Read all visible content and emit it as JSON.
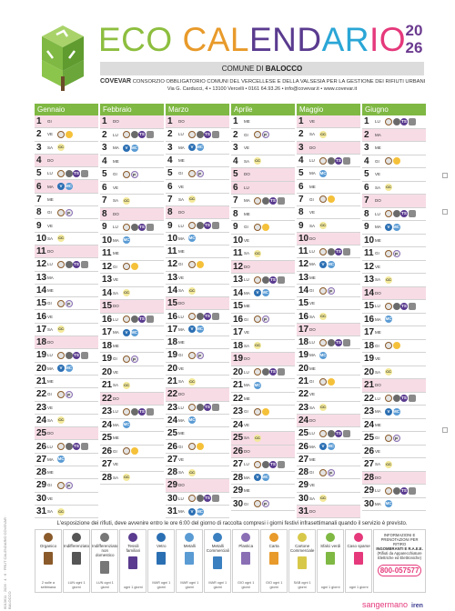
{
  "header": {
    "title_parts": [
      "ECO ",
      "CAL",
      "END",
      "AR",
      "IO"
    ],
    "year_top": "20",
    "year_bottom": "26",
    "comune_prefix": "COMUNE DI ",
    "comune_name": "BALOCCO",
    "org_name": "COVEVAR",
    "org_desc": " CONSORZIO OBBLIGATORIO COMUNI DEL VERCELLESE E DELLA VALSESIA PER LA GESTIONE DEI RIFIUTI URBANI",
    "address": "Via G. Carducci, 4 • 13100 Vercelli • 0161 64.93.26 • info@covevar.it • www.covevar.it"
  },
  "months": [
    {
      "name": "Gennaio",
      "days": [
        [
          "1",
          "GI",
          "",
          true
        ],
        [
          "2",
          "VE",
          "OC",
          false
        ],
        [
          "3",
          "SA",
          "CC",
          false
        ],
        [
          "4",
          "DO",
          "",
          true
        ],
        [
          "5",
          "LU",
          "OITS",
          false
        ],
        [
          "6",
          "MA",
          "VM",
          true
        ],
        [
          "7",
          "ME",
          "",
          false
        ],
        [
          "8",
          "GI",
          "OP",
          false
        ],
        [
          "9",
          "VE",
          "",
          false
        ],
        [
          "10",
          "SA",
          "CC",
          false
        ],
        [
          "11",
          "DO",
          "",
          true
        ],
        [
          "12",
          "LU",
          "OITS",
          false
        ],
        [
          "13",
          "MA",
          "",
          false
        ],
        [
          "14",
          "ME",
          "",
          false
        ],
        [
          "15",
          "GI",
          "OP",
          false
        ],
        [
          "16",
          "VE",
          "",
          false
        ],
        [
          "17",
          "SA",
          "CC",
          false
        ],
        [
          "18",
          "DO",
          "",
          true
        ],
        [
          "19",
          "LU",
          "OITS",
          false
        ],
        [
          "20",
          "MA",
          "VM",
          false
        ],
        [
          "21",
          "ME",
          "",
          false
        ],
        [
          "22",
          "GI",
          "OP",
          false
        ],
        [
          "23",
          "VE",
          "",
          false
        ],
        [
          "24",
          "SA",
          "CC",
          false
        ],
        [
          "25",
          "DO",
          "",
          true
        ],
        [
          "26",
          "LU",
          "OITS",
          false
        ],
        [
          "27",
          "MA",
          "M",
          false
        ],
        [
          "28",
          "ME",
          "",
          false
        ],
        [
          "29",
          "GI",
          "OP",
          false
        ],
        [
          "30",
          "VE",
          "",
          false
        ],
        [
          "31",
          "SA",
          "CC",
          false
        ]
      ]
    },
    {
      "name": "Febbraio",
      "days": [
        [
          "1",
          "DO",
          "",
          true
        ],
        [
          "2",
          "LU",
          "OITS",
          false
        ],
        [
          "3",
          "MA",
          "VM",
          false
        ],
        [
          "4",
          "ME",
          "",
          false
        ],
        [
          "5",
          "GI",
          "OP",
          false
        ],
        [
          "6",
          "VE",
          "",
          false
        ],
        [
          "7",
          "SA",
          "CC",
          false
        ],
        [
          "8",
          "DO",
          "",
          true
        ],
        [
          "9",
          "LU",
          "OITS",
          false
        ],
        [
          "10",
          "MA",
          "M",
          false
        ],
        [
          "11",
          "ME",
          "",
          false
        ],
        [
          "12",
          "GI",
          "OC",
          false
        ],
        [
          "13",
          "VE",
          "",
          false
        ],
        [
          "14",
          "SA",
          "CC",
          false
        ],
        [
          "15",
          "DO",
          "",
          true
        ],
        [
          "16",
          "LU",
          "OITS",
          false
        ],
        [
          "17",
          "MA",
          "VM",
          false
        ],
        [
          "18",
          "ME",
          "",
          false
        ],
        [
          "19",
          "GI",
          "OP",
          false
        ],
        [
          "20",
          "VE",
          "",
          false
        ],
        [
          "21",
          "SA",
          "CC",
          false
        ],
        [
          "22",
          "DO",
          "",
          true
        ],
        [
          "23",
          "LU",
          "OITS",
          false
        ],
        [
          "24",
          "MA",
          "M",
          false
        ],
        [
          "25",
          "ME",
          "",
          false
        ],
        [
          "26",
          "GI",
          "OC",
          false
        ],
        [
          "27",
          "VE",
          "",
          false
        ],
        [
          "28",
          "SA",
          "CC",
          false
        ]
      ]
    },
    {
      "name": "Marzo",
      "days": [
        [
          "1",
          "DO",
          "",
          true
        ],
        [
          "2",
          "LU",
          "OITS",
          false
        ],
        [
          "3",
          "MA",
          "VM",
          false
        ],
        [
          "4",
          "ME",
          "",
          false
        ],
        [
          "5",
          "GI",
          "OP",
          false
        ],
        [
          "6",
          "VE",
          "",
          false
        ],
        [
          "7",
          "SA",
          "CC",
          false
        ],
        [
          "8",
          "DO",
          "",
          true
        ],
        [
          "9",
          "LU",
          "OITS",
          false
        ],
        [
          "10",
          "MA",
          "M",
          false
        ],
        [
          "11",
          "ME",
          "",
          false
        ],
        [
          "12",
          "GI",
          "OC",
          false
        ],
        [
          "13",
          "VE",
          "",
          false
        ],
        [
          "14",
          "SA",
          "CC",
          false
        ],
        [
          "15",
          "DO",
          "",
          true
        ],
        [
          "16",
          "LU",
          "OITS",
          false
        ],
        [
          "17",
          "MA",
          "VM",
          false
        ],
        [
          "18",
          "ME",
          "",
          false
        ],
        [
          "19",
          "GI",
          "OP",
          false
        ],
        [
          "20",
          "VE",
          "",
          false
        ],
        [
          "21",
          "SA",
          "CC",
          false
        ],
        [
          "22",
          "DO",
          "",
          true
        ],
        [
          "23",
          "LU",
          "OITS",
          false
        ],
        [
          "24",
          "MA",
          "M",
          false
        ],
        [
          "25",
          "ME",
          "",
          false
        ],
        [
          "26",
          "GI",
          "OC",
          false
        ],
        [
          "27",
          "VE",
          "",
          false
        ],
        [
          "28",
          "SA",
          "CC",
          false
        ],
        [
          "29",
          "DO",
          "",
          true
        ],
        [
          "30",
          "LU",
          "OITS",
          false
        ],
        [
          "31",
          "MA",
          "VM",
          false
        ]
      ]
    },
    {
      "name": "Aprile",
      "days": [
        [
          "1",
          "ME",
          "",
          false
        ],
        [
          "2",
          "GI",
          "OP",
          false
        ],
        [
          "3",
          "VE",
          "",
          false
        ],
        [
          "4",
          "SA",
          "CC",
          false
        ],
        [
          "5",
          "DO",
          "",
          true
        ],
        [
          "6",
          "LU",
          "",
          true
        ],
        [
          "7",
          "MA",
          "OITS",
          false
        ],
        [
          "8",
          "ME",
          "",
          false
        ],
        [
          "9",
          "GI",
          "OC",
          false
        ],
        [
          "10",
          "VE",
          "",
          false
        ],
        [
          "11",
          "SA",
          "CC",
          false
        ],
        [
          "12",
          "DO",
          "",
          true
        ],
        [
          "13",
          "LU",
          "OITS",
          false
        ],
        [
          "14",
          "MA",
          "VM",
          false
        ],
        [
          "15",
          "ME",
          "",
          false
        ],
        [
          "16",
          "GI",
          "OP",
          false
        ],
        [
          "17",
          "VE",
          "",
          false
        ],
        [
          "18",
          "SA",
          "CC",
          false
        ],
        [
          "19",
          "DO",
          "",
          true
        ],
        [
          "20",
          "LU",
          "OITS",
          false
        ],
        [
          "21",
          "MA",
          "M",
          false
        ],
        [
          "22",
          "ME",
          "",
          false
        ],
        [
          "23",
          "GI",
          "OC",
          false
        ],
        [
          "24",
          "VE",
          "",
          false
        ],
        [
          "25",
          "SA",
          "CC",
          true
        ],
        [
          "26",
          "DO",
          "",
          true
        ],
        [
          "27",
          "LU",
          "OITS",
          false
        ],
        [
          "28",
          "MA",
          "VM",
          false
        ],
        [
          "29",
          "ME",
          "",
          false
        ],
        [
          "30",
          "GI",
          "OP",
          false
        ]
      ]
    },
    {
      "name": "Maggio",
      "days": [
        [
          "1",
          "VE",
          "",
          true
        ],
        [
          "2",
          "SA",
          "CC",
          false
        ],
        [
          "3",
          "DO",
          "",
          true
        ],
        [
          "4",
          "LU",
          "OITS",
          false
        ],
        [
          "5",
          "MA",
          "M",
          false
        ],
        [
          "6",
          "ME",
          "",
          false
        ],
        [
          "7",
          "GI",
          "OC",
          false
        ],
        [
          "8",
          "VE",
          "",
          false
        ],
        [
          "9",
          "SA",
          "CC",
          false
        ],
        [
          "10",
          "DO",
          "",
          true
        ],
        [
          "11",
          "LU",
          "OITS",
          false
        ],
        [
          "12",
          "MA",
          "VM",
          false
        ],
        [
          "13",
          "ME",
          "",
          false
        ],
        [
          "14",
          "GI",
          "OP",
          false
        ],
        [
          "15",
          "VE",
          "",
          false
        ],
        [
          "16",
          "SA",
          "CC",
          false
        ],
        [
          "17",
          "DO",
          "",
          true
        ],
        [
          "18",
          "LU",
          "OITS",
          false
        ],
        [
          "19",
          "MA",
          "M",
          false
        ],
        [
          "20",
          "ME",
          "",
          false
        ],
        [
          "21",
          "GI",
          "OC",
          false
        ],
        [
          "22",
          "VE",
          "",
          false
        ],
        [
          "23",
          "SA",
          "CC",
          false
        ],
        [
          "24",
          "DO",
          "",
          true
        ],
        [
          "25",
          "LU",
          "OITS",
          false
        ],
        [
          "26",
          "MA",
          "VM",
          false
        ],
        [
          "27",
          "ME",
          "",
          false
        ],
        [
          "28",
          "GI",
          "OP",
          false
        ],
        [
          "29",
          "VE",
          "",
          false
        ],
        [
          "30",
          "SA",
          "CC",
          false
        ],
        [
          "31",
          "DO",
          "",
          true
        ]
      ]
    },
    {
      "name": "Giugno",
      "days": [
        [
          "1",
          "LU",
          "OITS",
          false
        ],
        [
          "2",
          "MA",
          "",
          true
        ],
        [
          "3",
          "ME",
          "",
          false
        ],
        [
          "4",
          "GI",
          "OC",
          false
        ],
        [
          "5",
          "VE",
          "",
          false
        ],
        [
          "6",
          "SA",
          "CC",
          false
        ],
        [
          "7",
          "DO",
          "",
          true
        ],
        [
          "8",
          "LU",
          "OITS",
          false
        ],
        [
          "9",
          "MA",
          "VM",
          false
        ],
        [
          "10",
          "ME",
          "",
          false
        ],
        [
          "11",
          "GI",
          "OP",
          false
        ],
        [
          "12",
          "VE",
          "",
          false
        ],
        [
          "13",
          "SA",
          "CC",
          false
        ],
        [
          "14",
          "DO",
          "",
          true
        ],
        [
          "15",
          "LU",
          "OITS",
          false
        ],
        [
          "16",
          "MA",
          "M",
          false
        ],
        [
          "17",
          "ME",
          "",
          false
        ],
        [
          "18",
          "GI",
          "OC",
          false
        ],
        [
          "19",
          "VE",
          "",
          false
        ],
        [
          "20",
          "SA",
          "CC",
          false
        ],
        [
          "21",
          "DO",
          "",
          true
        ],
        [
          "22",
          "LU",
          "OITS",
          false
        ],
        [
          "23",
          "MA",
          "VM",
          false
        ],
        [
          "24",
          "ME",
          "",
          false
        ],
        [
          "25",
          "GI",
          "OP",
          false
        ],
        [
          "26",
          "VE",
          "",
          false
        ],
        [
          "27",
          "SA",
          "CC",
          false
        ],
        [
          "28",
          "DO",
          "",
          true
        ],
        [
          "29",
          "LU",
          "OITS",
          false
        ],
        [
          "30",
          "MA",
          "M",
          false
        ]
      ]
    }
  ],
  "notice": "L'esposizione dei rifiuti, deve avvenire entro le ore 6:00 del giorno di raccolta compresi i giorni festivi infrasettimanali quando il servizio è previsto.",
  "legend": [
    {
      "name": "Organico",
      "icon": "O",
      "color": "#8a5a2a",
      "detail": "2 sulle a settimana"
    },
    {
      "name": "Indifferenziato",
      "icon": "I",
      "color": "#555555",
      "detail": "LUN ogni 1 giorni"
    },
    {
      "name": "Indifferenziato non domestico",
      "icon": "I",
      "color": "#777777",
      "detail": "LUN ogni 1 giorni"
    },
    {
      "name": "Tessili familiari",
      "icon": "TS",
      "color": "#5a3b8f",
      "detail": "ogni 1 giorni"
    },
    {
      "name": "Vetro",
      "icon": "V",
      "color": "#2b6fb3",
      "detail": "MAR ogni 1 giorni"
    },
    {
      "name": "Metalli",
      "icon": "M",
      "color": "#5a9bd4",
      "detail": "MAR ogni 1 giorni"
    },
    {
      "name": "Metalli Commerciali",
      "icon": "MC",
      "color": "#3a7fc0",
      "detail": "MAR ogni 1 giorni"
    },
    {
      "name": "Plastica",
      "icon": "P",
      "color": "#8a6fb5",
      "detail": "GIO ogni 1 giorni"
    },
    {
      "name": "Carta",
      "icon": "C",
      "color": "#e89a2a",
      "detail": "GIO ogni 1 giorni"
    },
    {
      "name": "Cartone Commerciale",
      "icon": "CC",
      "color": "#d8c84a",
      "detail": "SAB ogni 1 giorni"
    },
    {
      "name": "Sfalci verdi",
      "icon": "S",
      "color": "#7fb843",
      "detail": "ogni 1 giorni"
    },
    {
      "name": "Caso sparse",
      "icon": "",
      "color": "#e5397b",
      "detail": "ogni 1 giorni"
    }
  ],
  "info": {
    "title": "INFORMAZIONI E PRENOTAZIONI PER RITIRO",
    "sub": "INGOMBRANTI E R.A.E.E.",
    "desc": "(Rifiuti da Apparecchiature Elettriche ed Elettroniche)",
    "phone": "800-057577"
  },
  "sponsor": {
    "name": "sangermano",
    "partner": "iren"
  },
  "side_text": "6013611 · 2026 · 4 · 6 · FRUT CALENDARIO COVEVAR · BALOCCO",
  "colors": {
    "green": "#7fb843",
    "purple": "#5a3b8f",
    "pink_holiday": "#f7dce6"
  }
}
